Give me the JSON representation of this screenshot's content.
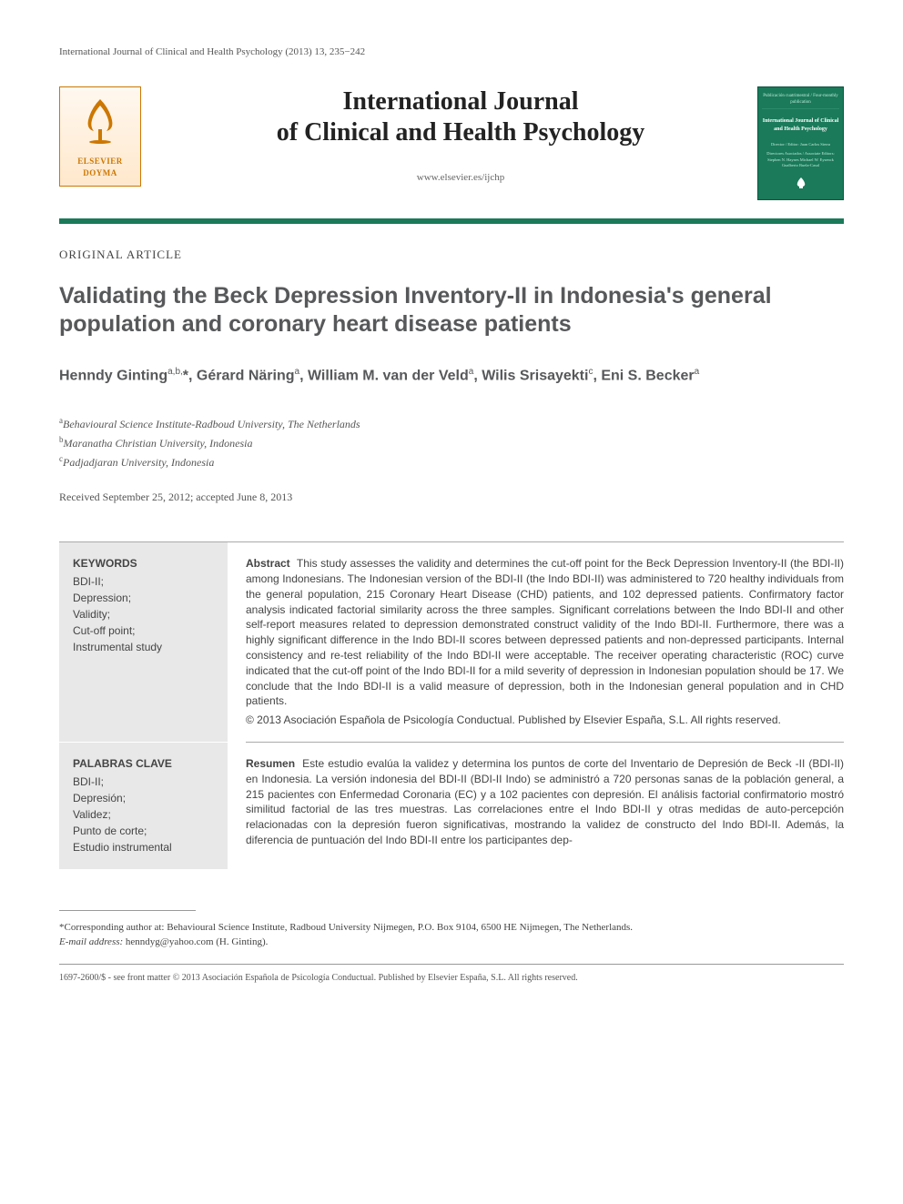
{
  "running_header": "International Journal of Clinical and Health Psychology (2013) 13, 235−242",
  "publisher_name": "ELSEVIER DOYMA",
  "journal_title_line1": "International Journal",
  "journal_title_line2": "of Clinical and Health Psychology",
  "journal_url": "www.elsevier.es/ijchp",
  "cover": {
    "top": "Publicación cuatrimestral / Four-monthly publication",
    "title": "International Journal of Clinical and Health Psychology",
    "director": "Director / Editor: Juan Carlos Sierra",
    "assoc": "Directores Asociados / Associate Editors: Stephen N. Haynes Michael W. Eysenck Gualberto Buela-Casal"
  },
  "article_type": "ORIGINAL ARTICLE",
  "article_title": "Validating the Beck Depression Inventory-II in Indonesia's general population and coronary heart disease patients",
  "authors_html": "Henndy Ginting<sup>a,b,</sup>*, Gérard Näring<sup>a</sup>, William M. van der Veld<sup>a</sup>, Wilis Srisayekti<sup>c</sup>, Eni S. Becker<sup>a</sup>",
  "affiliations": [
    {
      "sup": "a",
      "text": "Behavioural Science Institute-Radboud University, The Netherlands"
    },
    {
      "sup": "b",
      "text": "Maranatha Christian University, Indonesia"
    },
    {
      "sup": "c",
      "text": "Padjadjaran University, Indonesia"
    }
  ],
  "dates": "Received September 25, 2012; accepted June 8, 2013",
  "keywords_en": {
    "head": "KEYWORDS",
    "list": "BDI-II;\nDepression;\nValidity;\nCut-off point;\nInstrumental study"
  },
  "abstract_en": {
    "head": "Abstract",
    "body": "This study assesses the validity and determines the cut-off point for the Beck Depression Inventory-II (the BDI-II) among Indonesians. The Indonesian version of the BDI-II (the Indo BDI-II) was administered to 720 healthy individuals from the general population, 215 Coronary Heart Disease (CHD) patients, and 102 depressed patients. Confirmatory factor analysis indicated factorial similarity across the three samples. Significant correlations between the Indo BDI-II and other self-report measures related to depression demonstrated construct validity of the Indo BDI-II. Furthermore, there was a highly significant difference in the Indo BDI-II scores between depressed patients and non-depressed participants. Internal consistency and re-test reliability of the Indo BDI-II were acceptable. The receiver operating characteristic (ROC) curve indicated that the cut-off point of the Indo BDI-II for a mild severity of depression in Indonesian population should be 17. We conclude that the Indo BDI-II is a valid measure of depression, both in the Indonesian general population and in CHD patients.",
    "copyright": "© 2013 Asociación Española de Psicología Conductual. Published by Elsevier España, S.L. All rights reserved."
  },
  "keywords_es": {
    "head": "PALABRAS CLAVE",
    "list": "BDI-II;\nDepresión;\nValidez;\nPunto de corte;\nEstudio instrumental"
  },
  "abstract_es": {
    "head": "Resumen",
    "body": "Este estudio evalúa la validez y determina los puntos de corte del Inventario de Depresión de Beck -II (BDI-II) en Indonesia. La versión indonesia del BDI-II (BDI-II Indo) se administró a 720 personas sanas de la población general, a 215 pacientes con Enfermedad Coronaria (EC) y a 102 pacientes con depresión. El análisis factorial confirmatorio mostró similitud factorial de las tres muestras. Las correlaciones entre el Indo BDI-II y otras medidas de auto-percepción relacionadas con la depresión fueron significativas, mostrando la validez de constructo del Indo BDI-II. Además, la diferencia de puntuación del Indo BDI-II entre los participantes dep-"
  },
  "corresponding": "*Corresponding author at: Behavioural Science Institute, Radboud University Nijmegen, P.O. Box 9104, 6500 HE Nijmegen, The Netherlands.",
  "email_label": "E-mail address:",
  "email": "henndyg@yahoo.com (H. Ginting).",
  "issn_line": "1697-2600/$ - see front matter © 2013 Asociación Española de Psicología Conductual. Published by Elsevier España, S.L. All rights reserved.",
  "colors": {
    "brand_green": "#1a7a5a",
    "elsevier_orange": "#cc7700",
    "grey_bg": "#e8e8e8",
    "text_grey": "#57585a"
  }
}
